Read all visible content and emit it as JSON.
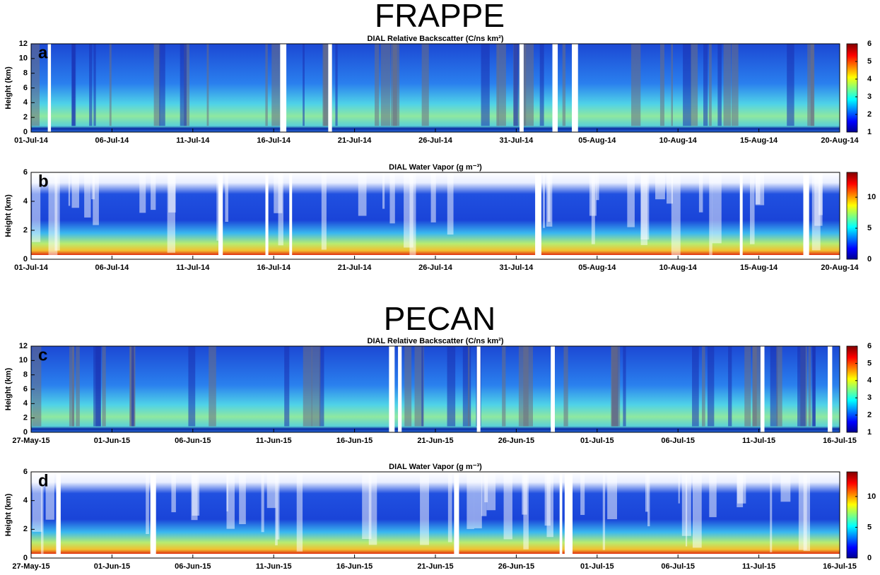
{
  "headings": [
    "FRAPPE",
    "PECAN"
  ],
  "chart_data": [
    {
      "type": "heatmap",
      "panel": "a",
      "title": "DIAL Relative Backscatter (C/ns km²)",
      "ylabel": "Height (km)",
      "categories": [
        "01-Jul-14",
        "06-Jul-14",
        "11-Jul-14",
        "16-Jul-14",
        "21-Jul-14",
        "26-Jul-14",
        "31-Jul-14",
        "05-Aug-14",
        "10-Aug-14",
        "15-Aug-14",
        "20-Aug-14"
      ],
      "ylim": [
        0,
        12
      ],
      "yticks": [
        0,
        2,
        4,
        6,
        8,
        10,
        12
      ],
      "colormap": "jet",
      "clim": [
        1,
        6
      ],
      "cticks": [
        1,
        2,
        3,
        4,
        5,
        6
      ]
    },
    {
      "type": "heatmap",
      "panel": "b",
      "title": "DIAL Water Vapor (g m⁻³)",
      "ylabel": "Height (km)",
      "categories": [
        "01-Jul-14",
        "06-Jul-14",
        "11-Jul-14",
        "16-Jul-14",
        "21-Jul-14",
        "26-Jul-14",
        "31-Jul-14",
        "05-Aug-14",
        "10-Aug-14",
        "15-Aug-14",
        "20-Aug-14"
      ],
      "ylim": [
        0,
        6
      ],
      "yticks": [
        0,
        2,
        4,
        6
      ],
      "colormap": "jet",
      "clim": [
        0,
        14
      ],
      "cticks": [
        0,
        5,
        10
      ]
    },
    {
      "type": "heatmap",
      "panel": "c",
      "title": "DIAL Relative Backscatter (C/ns km²)",
      "ylabel": "Height (km)",
      "categories": [
        "27-May-15",
        "01-Jun-15",
        "06-Jun-15",
        "11-Jun-15",
        "16-Jun-15",
        "21-Jun-15",
        "26-Jun-15",
        "01-Jul-15",
        "06-Jul-15",
        "11-Jul-15",
        "16-Jul-15"
      ],
      "ylim": [
        0,
        12
      ],
      "yticks": [
        0,
        2,
        4,
        6,
        8,
        10,
        12
      ],
      "colormap": "jet",
      "clim": [
        1,
        6
      ],
      "cticks": [
        1,
        2,
        3,
        4,
        5,
        6
      ]
    },
    {
      "type": "heatmap",
      "panel": "d",
      "title": "DIAL Water Vapor (g m⁻³)",
      "ylabel": "Height (km)",
      "categories": [
        "27-May-15",
        "01-Jun-15",
        "06-Jun-15",
        "11-Jun-15",
        "16-Jun-15",
        "21-Jun-15",
        "26-Jun-15",
        "01-Jul-15",
        "06-Jul-15",
        "11-Jul-15",
        "16-Jul-15"
      ],
      "ylim": [
        0,
        6
      ],
      "yticks": [
        0,
        2,
        4,
        6
      ],
      "colormap": "jet",
      "clim": [
        0,
        14
      ],
      "cticks": [
        0,
        5,
        10
      ]
    }
  ]
}
